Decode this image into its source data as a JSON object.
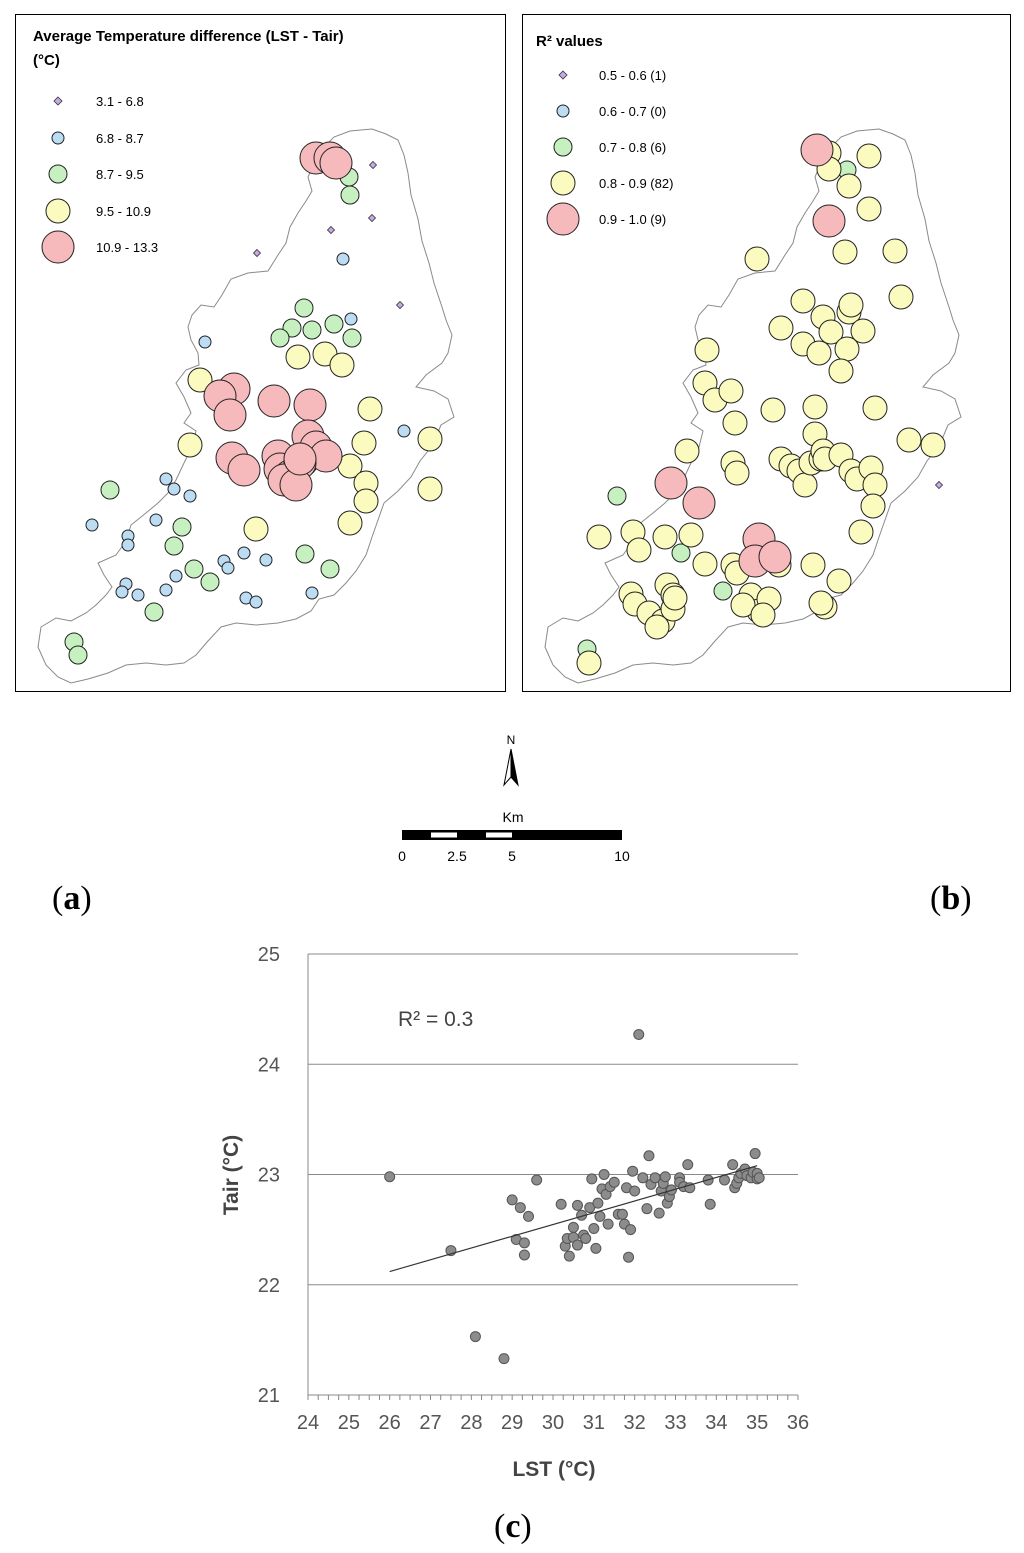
{
  "panel_a": {
    "title_line1": "Average Temperature difference (LST - Tair)",
    "title_line2": "(°C)",
    "legend": [
      {
        "label": "3.1 - 6.8",
        "color": "#c8a8e8",
        "size": 1
      },
      {
        "label": "6.8 - 8.7",
        "color": "#bcdcf4",
        "size": 2
      },
      {
        "label": "8.7 - 9.5",
        "color": "#c6f0c0",
        "size": 3
      },
      {
        "label": "9.5 - 10.9",
        "color": "#fbfbbf",
        "size": 4
      },
      {
        "label": "10.9 - 13.3",
        "color": "#f6b9bc",
        "size": 5
      }
    ]
  },
  "panel_b": {
    "title": "R² values",
    "legend": [
      {
        "label": "0.5 - 0.6 (1)",
        "color": "#c8a8e8",
        "size": 1
      },
      {
        "label": "0.6 - 0.7 (0)",
        "color": "#bcdcf4",
        "size": 2
      },
      {
        "label": "0.7 - 0.8 (6)",
        "color": "#c6f0c0",
        "size": 3
      },
      {
        "label": "0.8 - 0.9 (82)",
        "color": "#fbfbbf",
        "size": 4
      },
      {
        "label": "0.9 - 1.0 (9)",
        "color": "#f6b9bc",
        "size": 5
      }
    ]
  },
  "north_label": "N",
  "scale": {
    "unit": "Km",
    "ticks": [
      "0",
      "2.5",
      "5",
      "10"
    ]
  },
  "captions": {
    "a": "a",
    "b": "b",
    "c": "c"
  },
  "chart_data": {
    "type": "scatter",
    "xlabel": "LST (°C)",
    "ylabel": "Tair (°C)",
    "xlim": [
      24,
      36
    ],
    "ylim": [
      21,
      25
    ],
    "xticks": [
      24,
      25,
      26,
      27,
      28,
      29,
      30,
      31,
      32,
      33,
      34,
      35,
      36
    ],
    "yticks": [
      21,
      22,
      23,
      24,
      25
    ],
    "grid": "horizontal",
    "annotation": "R² = 0.3",
    "point_color": "#8c8c8c",
    "trendline": {
      "x": [
        26.0,
        35.0
      ],
      "y": [
        22.12,
        23.08
      ]
    },
    "points": [
      [
        26.0,
        22.98
      ],
      [
        27.5,
        22.31
      ],
      [
        28.1,
        21.53
      ],
      [
        28.8,
        21.33
      ],
      [
        29.0,
        22.77
      ],
      [
        29.1,
        22.41
      ],
      [
        29.2,
        22.7
      ],
      [
        29.3,
        22.38
      ],
      [
        29.4,
        22.62
      ],
      [
        29.3,
        22.27
      ],
      [
        29.6,
        22.95
      ],
      [
        30.2,
        22.73
      ],
      [
        30.3,
        22.35
      ],
      [
        30.35,
        22.42
      ],
      [
        30.4,
        22.26
      ],
      [
        30.5,
        22.52
      ],
      [
        30.5,
        22.43
      ],
      [
        30.6,
        22.72
      ],
      [
        30.6,
        22.36
      ],
      [
        30.7,
        22.63
      ],
      [
        30.75,
        22.45
      ],
      [
        30.8,
        22.42
      ],
      [
        30.9,
        22.7
      ],
      [
        30.95,
        22.96
      ],
      [
        31.0,
        22.51
      ],
      [
        31.05,
        22.33
      ],
      [
        31.1,
        22.74
      ],
      [
        31.15,
        22.62
      ],
      [
        31.2,
        22.87
      ],
      [
        31.25,
        23.0
      ],
      [
        31.3,
        22.82
      ],
      [
        31.35,
        22.55
      ],
      [
        31.4,
        22.89
      ],
      [
        31.5,
        22.93
      ],
      [
        31.6,
        22.64
      ],
      [
        31.7,
        22.64
      ],
      [
        31.75,
        22.55
      ],
      [
        31.8,
        22.88
      ],
      [
        31.85,
        22.25
      ],
      [
        31.9,
        22.5
      ],
      [
        31.95,
        23.03
      ],
      [
        32.0,
        22.85
      ],
      [
        32.1,
        24.27
      ],
      [
        32.2,
        22.97
      ],
      [
        32.3,
        22.69
      ],
      [
        32.35,
        23.17
      ],
      [
        32.4,
        22.91
      ],
      [
        32.5,
        22.97
      ],
      [
        32.6,
        22.65
      ],
      [
        32.65,
        22.85
      ],
      [
        32.7,
        22.92
      ],
      [
        32.75,
        22.98
      ],
      [
        32.8,
        22.74
      ],
      [
        32.85,
        22.8
      ],
      [
        32.9,
        22.86
      ],
      [
        33.1,
        22.97
      ],
      [
        33.1,
        22.93
      ],
      [
        33.2,
        22.89
      ],
      [
        33.3,
        23.09
      ],
      [
        33.35,
        22.88
      ],
      [
        33.8,
        22.95
      ],
      [
        33.85,
        22.73
      ],
      [
        34.2,
        22.95
      ],
      [
        34.4,
        23.09
      ],
      [
        34.45,
        22.88
      ],
      [
        34.5,
        22.92
      ],
      [
        34.55,
        22.97
      ],
      [
        34.6,
        23.01
      ],
      [
        34.7,
        23.05
      ],
      [
        34.75,
        22.99
      ],
      [
        34.85,
        22.97
      ],
      [
        34.9,
        23.02
      ],
      [
        34.95,
        23.19
      ],
      [
        35.0,
        22.96
      ],
      [
        35.0,
        23.01
      ],
      [
        35.05,
        22.97
      ]
    ]
  }
}
